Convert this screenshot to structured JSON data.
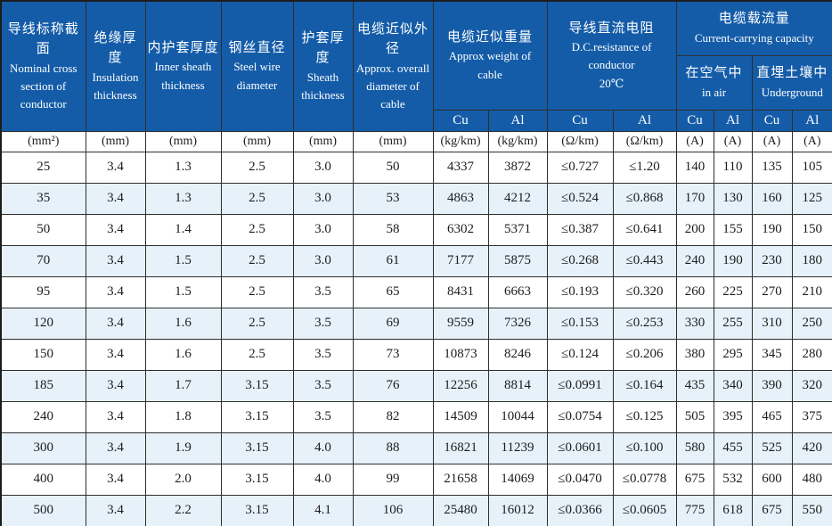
{
  "table": {
    "header": {
      "cols": [
        {
          "zh": "导线标称截面",
          "en": "Nominal cross section of conductor"
        },
        {
          "zh": "绝缘厚度",
          "en": "Insulation thickness"
        },
        {
          "zh": "内护套厚度",
          "en": "Inner sheath thickness"
        },
        {
          "zh": "钢丝直径",
          "en": "Steel wire diameter"
        },
        {
          "zh": "护套厚度",
          "en": "Sheath thickness"
        },
        {
          "zh": "电缆近似外径",
          "en": "Approx. overall diameter of cable"
        }
      ],
      "weight": {
        "zh": "电缆近似重量",
        "en": "Approx weight of cable"
      },
      "resistance": {
        "zh": "导线直流电阻",
        "en": "D.C.resistance of conductor",
        "temp": "20℃"
      },
      "capacity": {
        "zh": "电缆载流量",
        "en": "Current-carrying capacity"
      },
      "in_air": {
        "zh": "在空气中",
        "en": "in air"
      },
      "underground": {
        "zh": "直埋土壤中",
        "en": "Underground"
      },
      "metals": [
        "Cu",
        "Al",
        "Cu",
        "Al",
        "Cu",
        "Al",
        "Cu",
        "Al"
      ]
    },
    "units": [
      "(mm²)",
      "(mm)",
      "(mm)",
      "(mm)",
      "(mm)",
      "(mm)",
      "(kg/km)",
      "(kg/km)",
      "(Ω/km)",
      "(Ω/km)",
      "(A)",
      "(A)",
      "(A)",
      "(A)"
    ],
    "rows": [
      [
        "25",
        "3.4",
        "1.3",
        "2.5",
        "3.0",
        "50",
        "4337",
        "3872",
        "≤0.727",
        "≤1.20",
        "140",
        "110",
        "135",
        "105"
      ],
      [
        "35",
        "3.4",
        "1.3",
        "2.5",
        "3.0",
        "53",
        "4863",
        "4212",
        "≤0.524",
        "≤0.868",
        "170",
        "130",
        "160",
        "125"
      ],
      [
        "50",
        "3.4",
        "1.4",
        "2.5",
        "3.0",
        "58",
        "6302",
        "5371",
        "≤0.387",
        "≤0.641",
        "200",
        "155",
        "190",
        "150"
      ],
      [
        "70",
        "3.4",
        "1.5",
        "2.5",
        "3.0",
        "61",
        "7177",
        "5875",
        "≤0.268",
        "≤0.443",
        "240",
        "190",
        "230",
        "180"
      ],
      [
        "95",
        "3.4",
        "1.5",
        "2.5",
        "3.5",
        "65",
        "8431",
        "6663",
        "≤0.193",
        "≤0.320",
        "260",
        "225",
        "270",
        "210"
      ],
      [
        "120",
        "3.4",
        "1.6",
        "2.5",
        "3.5",
        "69",
        "9559",
        "7326",
        "≤0.153",
        "≤0.253",
        "330",
        "255",
        "310",
        "250"
      ],
      [
        "150",
        "3.4",
        "1.6",
        "2.5",
        "3.5",
        "73",
        "10873",
        "8246",
        "≤0.124",
        "≤0.206",
        "380",
        "295",
        "345",
        "280"
      ],
      [
        "185",
        "3.4",
        "1.7",
        "3.15",
        "3.5",
        "76",
        "12256",
        "8814",
        "≤0.0991",
        "≤0.164",
        "435",
        "340",
        "390",
        "320"
      ],
      [
        "240",
        "3.4",
        "1.8",
        "3.15",
        "3.5",
        "82",
        "14509",
        "10044",
        "≤0.0754",
        "≤0.125",
        "505",
        "395",
        "465",
        "375"
      ],
      [
        "300",
        "3.4",
        "1.9",
        "3.15",
        "4.0",
        "88",
        "16821",
        "11239",
        "≤0.0601",
        "≤0.100",
        "580",
        "455",
        "525",
        "420"
      ],
      [
        "400",
        "3.4",
        "2.0",
        "3.15",
        "4.0",
        "99",
        "21658",
        "14069",
        "≤0.0470",
        "≤0.0778",
        "675",
        "532",
        "600",
        "480"
      ],
      [
        "500",
        "3.4",
        "2.2",
        "3.15",
        "4.1",
        "106",
        "25480",
        "16012",
        "≤0.0366",
        "≤0.0605",
        "775",
        "618",
        "675",
        "550"
      ]
    ]
  },
  "colors": {
    "header_blue": "#145ca8",
    "header_text": "#ffffff",
    "alt_row_blue": "#e6f1fa",
    "border": "#2e2e2e",
    "body_text": "#1d1d1d"
  }
}
